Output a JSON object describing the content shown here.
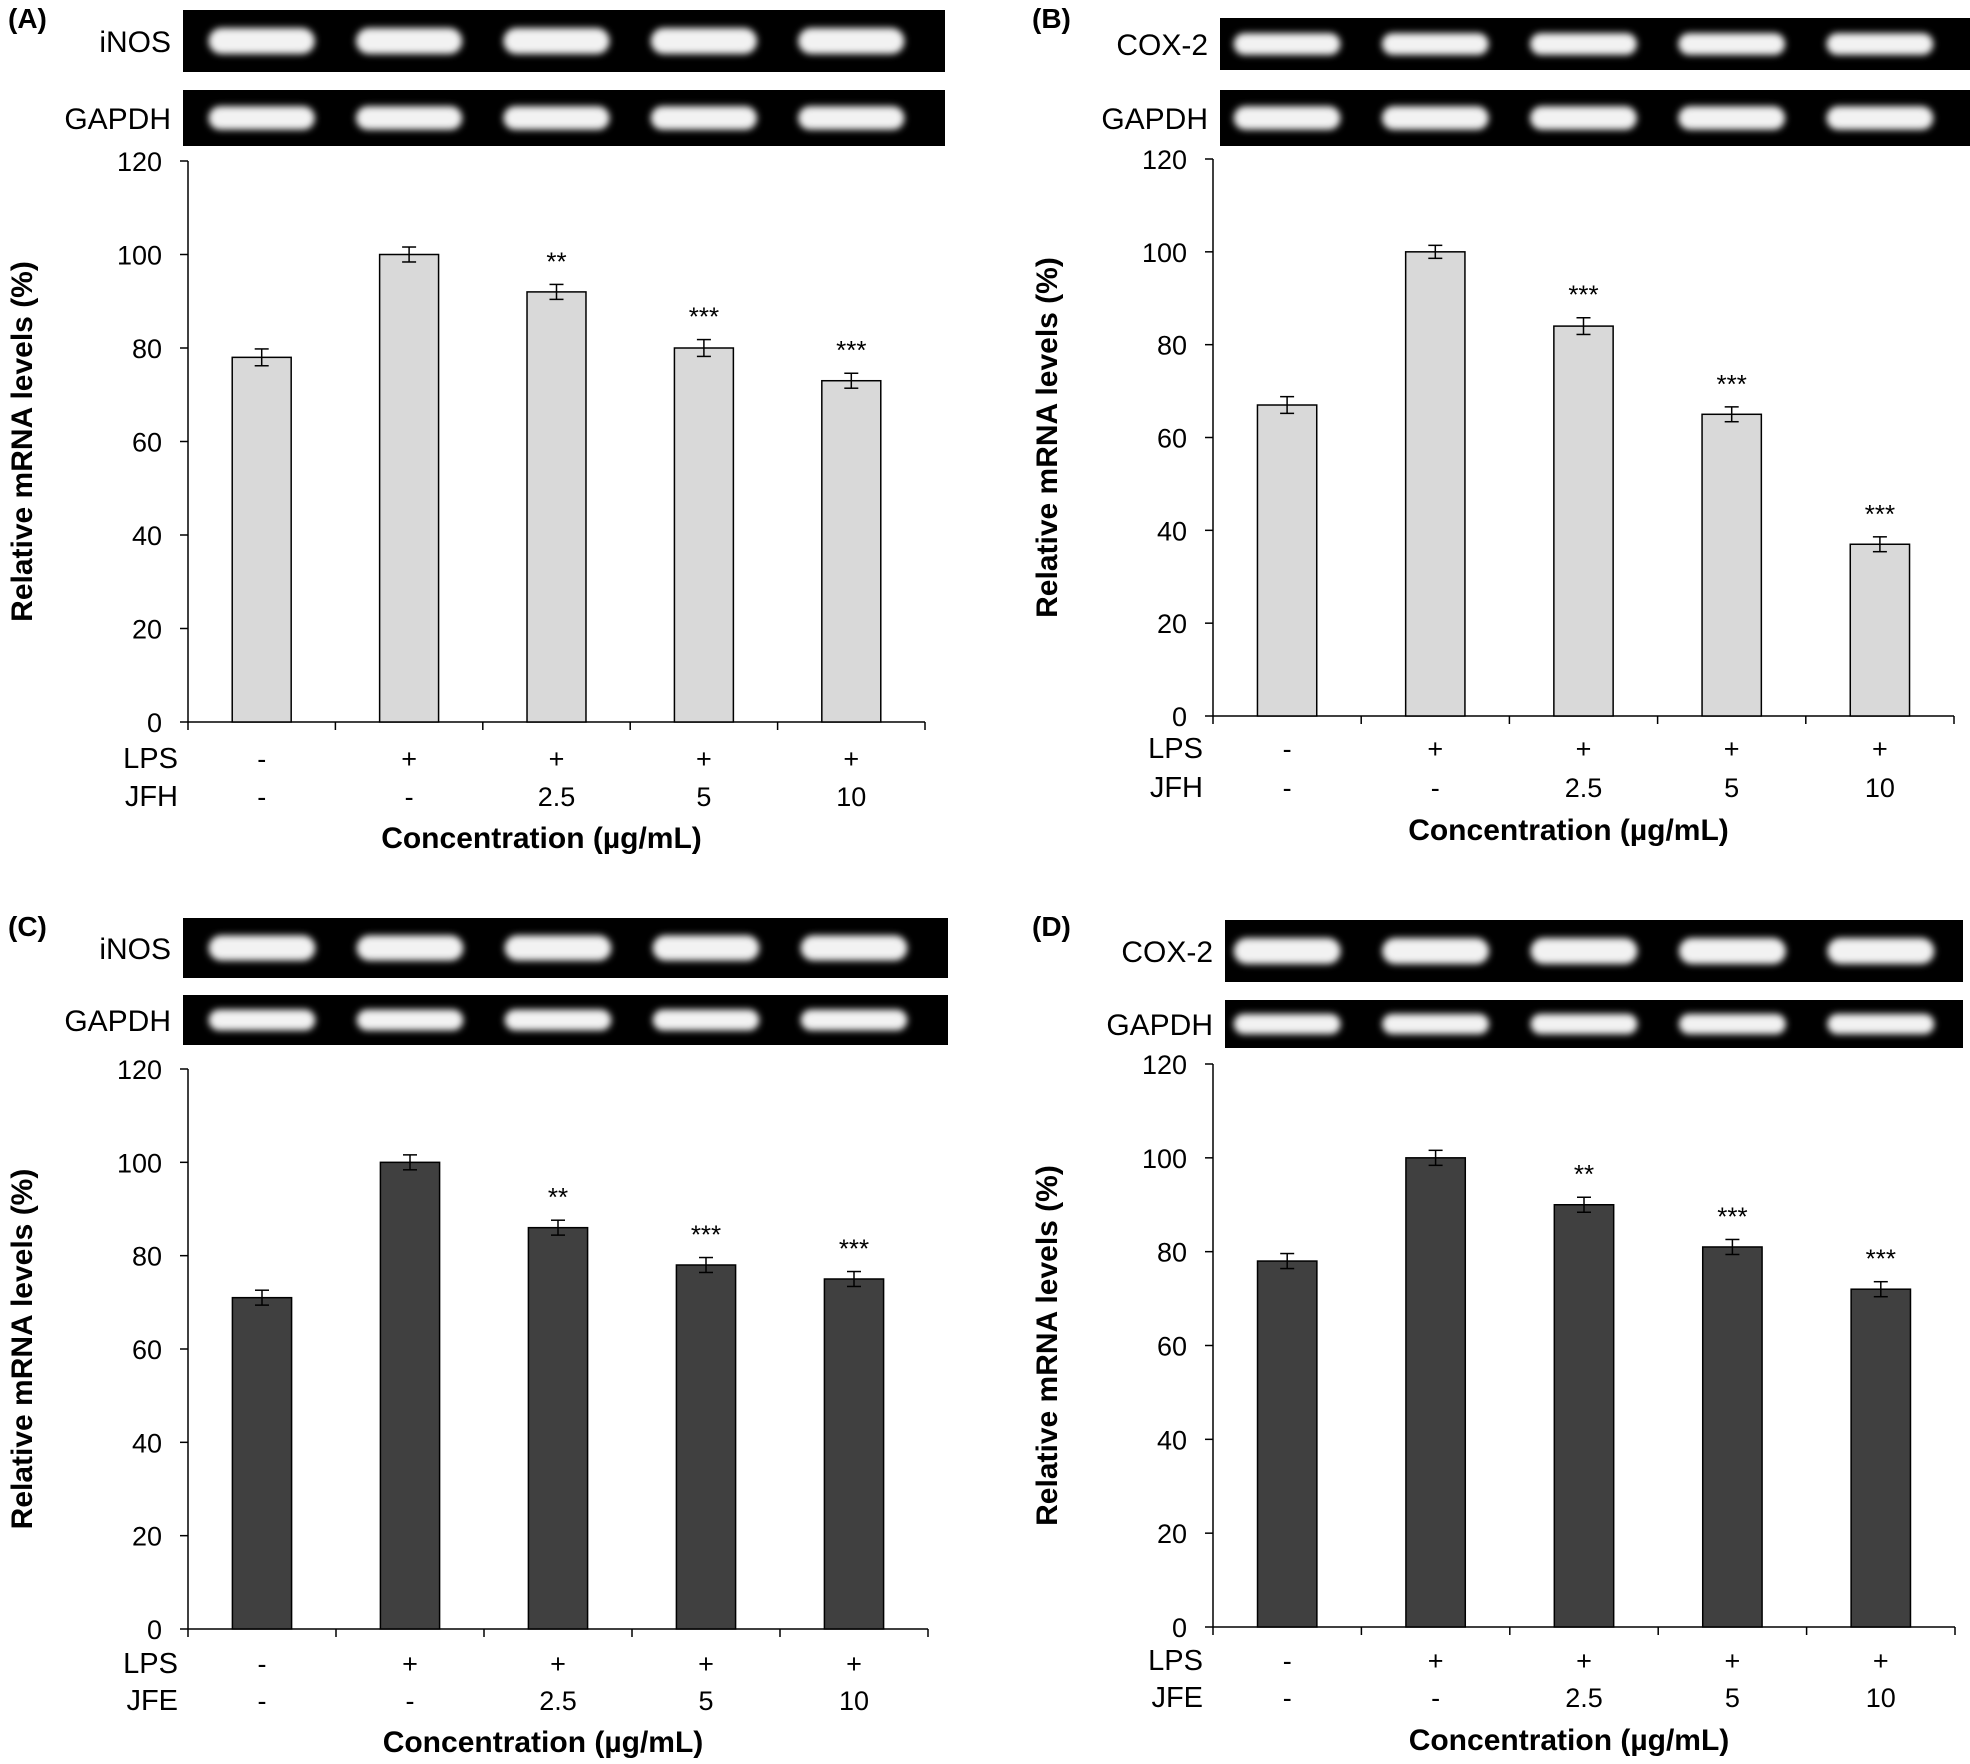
{
  "figure": {
    "bar_fill_light": "#d9d9d9",
    "bar_fill_dark": "#404040",
    "gel_background": "#000000",
    "band_color": "#f2f2f2"
  },
  "chart_data": [
    {
      "panel_label": "(A)",
      "type": "bar",
      "blot_labels": [
        "iNOS",
        "GAPDH"
      ],
      "ylabel": "Relative mRNA levels (%)",
      "xlabel": "Concentration (µg/mL)",
      "ylim": [
        0,
        120
      ],
      "yticks": [
        0,
        20,
        40,
        60,
        80,
        100,
        120
      ],
      "treatment_rows": [
        {
          "label": "LPS",
          "values": [
            "-",
            "+",
            "+",
            "+",
            "+"
          ]
        },
        {
          "label": "JFH",
          "values": [
            "-",
            "-",
            "2.5",
            "5",
            "10"
          ]
        }
      ],
      "values": [
        78,
        100,
        92,
        80,
        73
      ],
      "errors": [
        1.8,
        1.6,
        1.6,
        1.8,
        1.6
      ],
      "significance": [
        "",
        "",
        "**",
        "***",
        "***"
      ],
      "bar_color": "#d9d9d9"
    },
    {
      "panel_label": "(B)",
      "type": "bar",
      "blot_labels": [
        "COX-2",
        "GAPDH"
      ],
      "ylabel": "Relative mRNA levels (%)",
      "xlabel": "Concentration (µg/mL)",
      "ylim": [
        0,
        120
      ],
      "yticks": [
        0,
        20,
        40,
        60,
        80,
        100,
        120
      ],
      "treatment_rows": [
        {
          "label": "LPS",
          "values": [
            "-",
            "+",
            "+",
            "+",
            "+"
          ]
        },
        {
          "label": "JFH",
          "values": [
            "-",
            "-",
            "2.5",
            "5",
            "10"
          ]
        }
      ],
      "values": [
        67,
        100,
        84,
        65,
        37
      ],
      "errors": [
        1.8,
        1.4,
        1.8,
        1.6,
        1.6
      ],
      "significance": [
        "",
        "",
        "***",
        "***",
        "***"
      ],
      "bar_color": "#d9d9d9"
    },
    {
      "panel_label": "(C)",
      "type": "bar",
      "blot_labels": [
        "iNOS",
        "GAPDH"
      ],
      "ylabel": "Relative mRNA levels (%)",
      "xlabel": "Concentration (µg/mL)",
      "ylim": [
        0,
        120
      ],
      "yticks": [
        0,
        20,
        40,
        60,
        80,
        100,
        120
      ],
      "treatment_rows": [
        {
          "label": "LPS",
          "values": [
            "-",
            "+",
            "+",
            "+",
            "+"
          ]
        },
        {
          "label": "JFE",
          "values": [
            "-",
            "-",
            "2.5",
            "5",
            "10"
          ]
        }
      ],
      "values": [
        71,
        100,
        86,
        78,
        75
      ],
      "errors": [
        1.6,
        1.6,
        1.6,
        1.6,
        1.6
      ],
      "significance": [
        "",
        "",
        "**",
        "***",
        "***"
      ],
      "bar_color": "#404040"
    },
    {
      "panel_label": "(D)",
      "type": "bar",
      "blot_labels": [
        "COX-2",
        "GAPDH"
      ],
      "ylabel": "Relative mRNA levels (%)",
      "xlabel": "Concentration (µg/mL)",
      "ylim": [
        0,
        120
      ],
      "yticks": [
        0,
        20,
        40,
        60,
        80,
        100,
        120
      ],
      "treatment_rows": [
        {
          "label": "LPS",
          "values": [
            "-",
            "+",
            "+",
            "+",
            "+"
          ]
        },
        {
          "label": "JFE",
          "values": [
            "-",
            "-",
            "2.5",
            "5",
            "10"
          ]
        }
      ],
      "values": [
        78,
        100,
        90,
        81,
        72
      ],
      "errors": [
        1.6,
        1.6,
        1.6,
        1.6,
        1.6
      ],
      "significance": [
        "",
        "",
        "**",
        "***",
        "***"
      ],
      "bar_color": "#404040"
    }
  ]
}
